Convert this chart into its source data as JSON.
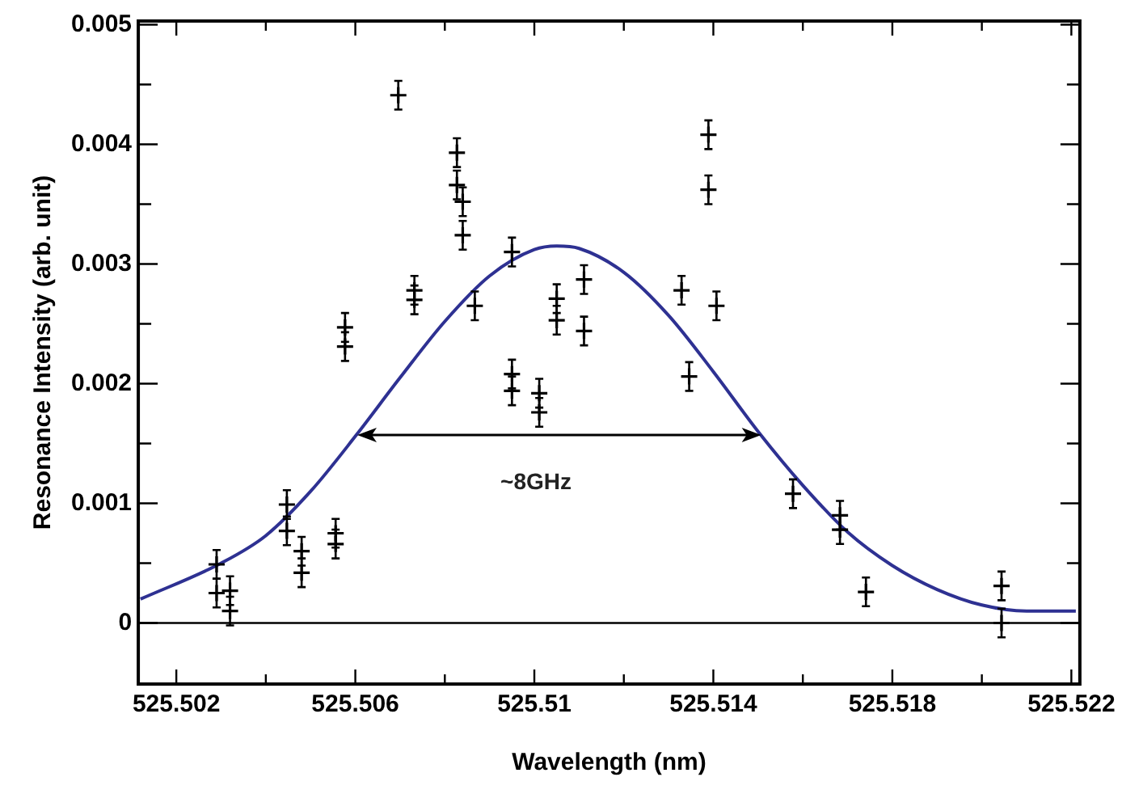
{
  "chart_data": {
    "type": "scatter",
    "xlabel": "Wavelength (nm)",
    "ylabel": "Resonance Intensity (arb. unit)",
    "xlim": [
      525.50115,
      525.52219
    ],
    "ylim": [
      -0.00051,
      0.00503
    ],
    "xticks": [
      525.502,
      {
        "value": 525.504,
        "label": null
      },
      525.506,
      {
        "value": 525.508,
        "label": null
      },
      525.51,
      {
        "value": 525.512,
        "label": null
      },
      525.514,
      {
        "value": 525.516,
        "label": null
      },
      525.518,
      {
        "value": 525.52,
        "label": null
      },
      525.522
    ],
    "yticks": [
      0,
      {
        "value": 0.0005,
        "label": null
      },
      0.001,
      {
        "value": 0.0015,
        "label": null
      },
      0.002,
      {
        "value": 0.0025,
        "label": null
      },
      0.003,
      {
        "value": 0.0035,
        "label": null
      },
      0.004,
      {
        "value": 0.0045,
        "label": null
      },
      0.005
    ],
    "marker": "cross",
    "legend": false,
    "ref_lines": [
      {
        "axis": "y",
        "value": 0,
        "color": "#000000"
      }
    ],
    "annotations": [
      "~8GHz"
    ],
    "series": [
      {
        "type": "scatter",
        "color": "#000000",
        "x": [
          525.5029,
          525.5029,
          525.5032,
          525.5032,
          525.50447,
          525.50447,
          525.5048,
          525.5048,
          525.50556,
          525.50556,
          525.50577,
          525.50577,
          525.50696,
          525.50732,
          525.50732,
          525.50827,
          525.50827,
          525.5084,
          525.5084,
          525.50867,
          525.5095,
          525.5095,
          525.5095,
          525.51011,
          525.51011,
          525.5105,
          525.5105,
          525.51111,
          525.51111,
          525.51329,
          525.51389,
          525.51389,
          525.51407,
          525.51346,
          525.51578,
          525.51683,
          525.51683,
          525.51741,
          525.52044,
          525.52044
        ],
        "values": [
          0.00049,
          0.00025,
          0.00027,
          0.0001,
          0.00099,
          0.00077,
          0.0006,
          0.00042,
          0.00075,
          0.00066,
          0.00247,
          0.00231,
          0.00441,
          0.00278,
          0.0027,
          0.00393,
          0.00366,
          0.00352,
          0.00324,
          0.00265,
          0.0031,
          0.00208,
          0.00194,
          0.00192,
          0.00176,
          0.00271,
          0.00253,
          0.00287,
          0.00244,
          0.00278,
          0.00408,
          0.00362,
          0.00265,
          0.00206,
          0.00108,
          0.0009,
          0.00078,
          0.00026,
          0.00031,
          0
        ],
        "errors": [
          0.00012,
          0.00012,
          0.00012,
          0.00012,
          0.00012,
          0.00012,
          0.00012,
          0.00012,
          0.00012,
          0.00012,
          0.00012,
          0.00012,
          0.00012,
          0.00012,
          0.00012,
          0.00012,
          0.00012,
          0.00012,
          0.00012,
          0.00012,
          0.00012,
          0.00012,
          0.00012,
          0.00012,
          0.00012,
          0.00012,
          0.00012,
          0.00012,
          0.00012,
          0.00012,
          0.00012,
          0.00012,
          0.00012,
          0.00012,
          0.00012,
          0.00012,
          0.00012,
          0.00012,
          0.00012,
          0.00012
        ]
      },
      {
        "type": "line",
        "color": "#2e3192",
        "marker": "none",
        "x": [
          525.5012,
          525.503,
          525.504,
          525.505,
          525.506,
          525.507,
          525.508,
          525.509,
          525.51,
          525.5105,
          525.511,
          525.512,
          525.513,
          525.514,
          525.515,
          525.516,
          525.517,
          525.518,
          525.519,
          525.52,
          525.521,
          525.5221
        ],
        "values": [
          0.0002,
          0.0005,
          0.00073,
          0.0011,
          0.00156,
          0.00205,
          0.00252,
          0.0029,
          0.00312,
          0.00315,
          0.00313,
          0.00293,
          0.00257,
          0.0021,
          0.0016,
          0.00115,
          0.00076,
          0.00048,
          0.00028,
          0.00015,
          0.0001,
          0.0001
        ]
      }
    ]
  }
}
